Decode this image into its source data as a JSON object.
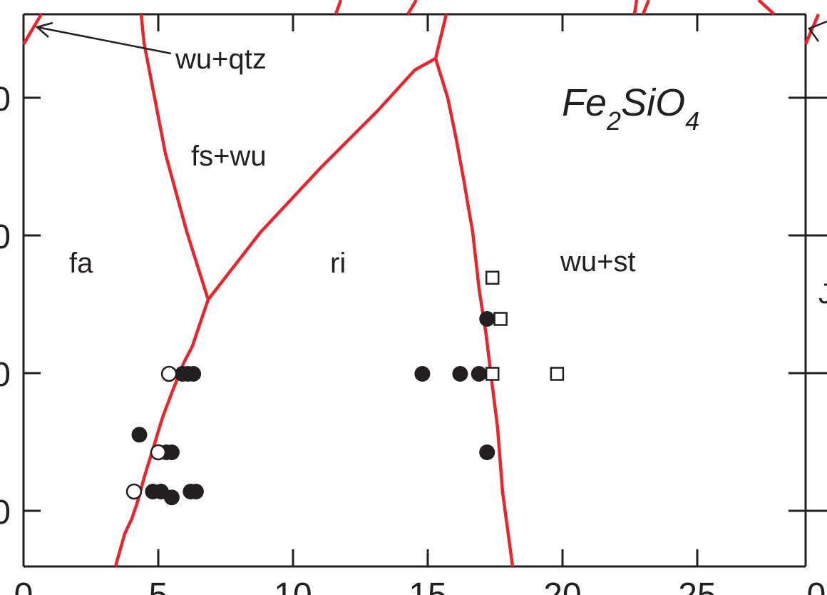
{
  "chart_data": {
    "type": "scatter",
    "title_main": "Fe",
    "title_sub1": "2",
    "title_mid": "SiO",
    "title_sub2": "4",
    "xlabel": "",
    "ylabel": "",
    "xlim": [
      0,
      29
    ],
    "x_ticks": [
      "0",
      "5",
      "10",
      "15",
      "20",
      "25",
      "0"
    ],
    "y_ticks": [
      "0",
      "0",
      "0",
      "0"
    ],
    "grid": false,
    "colors": {
      "boundary": "#e8242c",
      "ink": "#231f20",
      "background": "#ffffff"
    },
    "phase_labels": [
      {
        "text": "fa"
      },
      {
        "text": "fs+wu"
      },
      {
        "text": "ri"
      },
      {
        "text": "wu+st"
      },
      {
        "text": "wu+qtz"
      }
    ],
    "filled_circles": [
      [
        4.3,
        27.3
      ],
      [
        4.8,
        24.4
      ],
      [
        5.1,
        24.4
      ],
      [
        6.2,
        24.4
      ],
      [
        6.4,
        24.4
      ],
      [
        5.5,
        24.1
      ],
      [
        5.3,
        26.4
      ],
      [
        5.5,
        26.4
      ],
      [
        5.9,
        30.4
      ],
      [
        6.1,
        30.4
      ],
      [
        6.3,
        30.4
      ],
      [
        14.8,
        30.4
      ],
      [
        16.2,
        30.4
      ],
      [
        16.9,
        30.4
      ],
      [
        17.2,
        33.2
      ],
      [
        17.2,
        26.4
      ]
    ],
    "open_circles": [
      [
        4.1,
        24.4
      ],
      [
        5.0,
        26.4
      ],
      [
        5.4,
        30.4
      ]
    ],
    "open_squares": [
      [
        17.4,
        30.4
      ],
      [
        19.8,
        30.4
      ],
      [
        17.7,
        33.2
      ],
      [
        17.4,
        35.3
      ]
    ]
  }
}
